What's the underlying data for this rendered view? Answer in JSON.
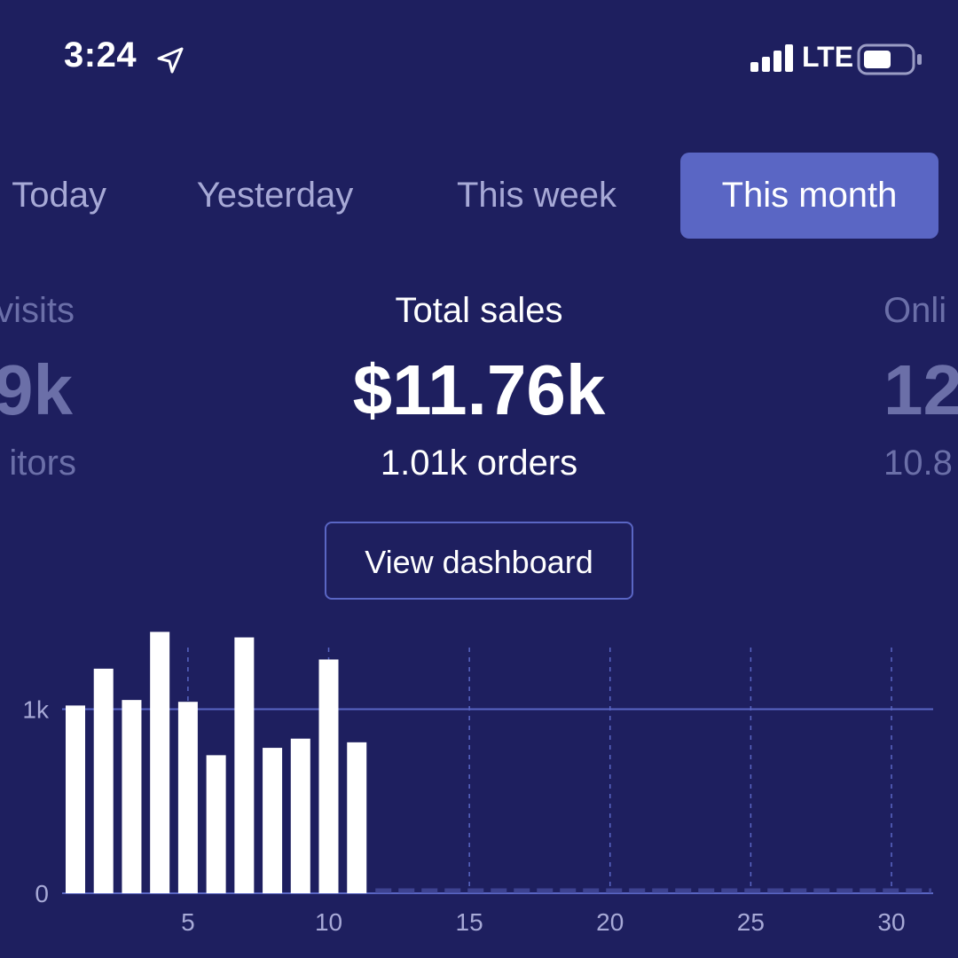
{
  "status_bar": {
    "time": "3:24",
    "network": "LTE",
    "icons": [
      "location-arrow-icon",
      "cellular-signal-icon",
      "battery-icon"
    ]
  },
  "tabs": [
    {
      "label": "Today",
      "selected": false
    },
    {
      "label": "Yesterday",
      "selected": false
    },
    {
      "label": "This week",
      "selected": false
    },
    {
      "label": "This month",
      "selected": true
    }
  ],
  "metrics": {
    "left": {
      "label": "visits",
      "value": "9k",
      "sub": "itors"
    },
    "center": {
      "label": "Total sales",
      "value": "$11.76k",
      "sub": "1.01k orders"
    },
    "right": {
      "label": "Onli",
      "value": "12",
      "sub": "10.8"
    }
  },
  "view_dashboard_label": "View dashboard",
  "colors": {
    "background": "#1e1f5f",
    "accent": "#5a66c4",
    "bar": "#ffffff",
    "muted_text": "#a7a9d6"
  },
  "chart_data": {
    "type": "bar",
    "x": [
      1,
      2,
      3,
      4,
      5,
      6,
      7,
      8,
      9,
      10,
      11
    ],
    "values": [
      1020,
      1220,
      1050,
      1420,
      1040,
      750,
      1390,
      790,
      840,
      1270,
      820
    ],
    "xlim": [
      1,
      31
    ],
    "ylim": [
      0,
      1600
    ],
    "x_ticks": [
      5,
      10,
      15,
      20,
      25,
      30
    ],
    "y_ticks": [
      0,
      1000
    ],
    "y_tick_labels": [
      "0",
      "1k"
    ],
    "grid": "dashed vertical at x ticks, solid horizontal at 1k",
    "remaining_days": "dashed baseline"
  }
}
